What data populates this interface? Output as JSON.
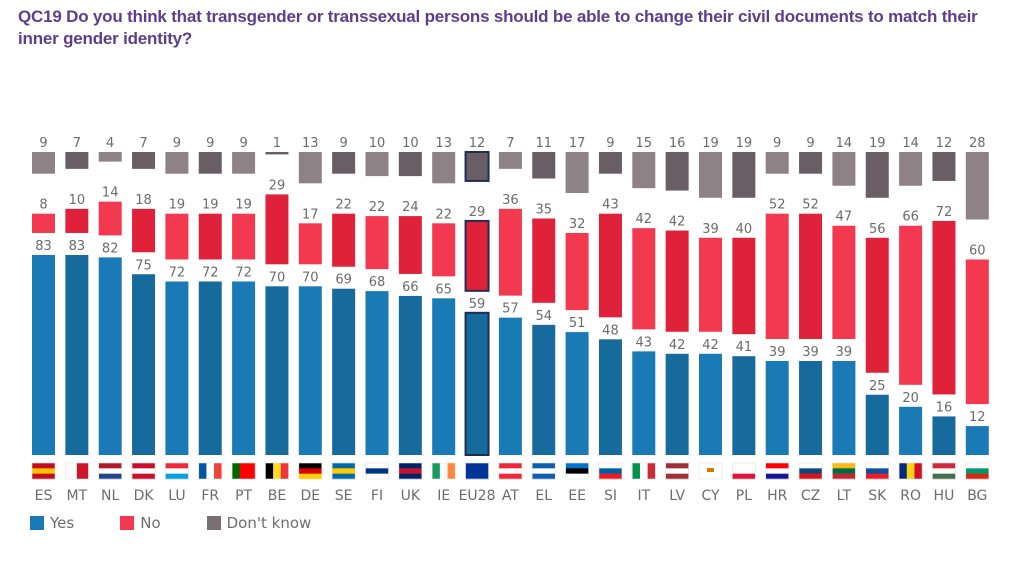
{
  "title": "QC19 Do you think that transgender or transsexual persons should be able to change their civil documents to match their inner gender identity?",
  "chart_data": {
    "type": "bar",
    "subtype": "stacked-separated",
    "title": "QC19 Do you think that transgender or transsexual persons should be able to change their civil documents to match their inner gender identity?",
    "xlabel": "",
    "ylabel": "",
    "ylim": [
      0,
      100
    ],
    "grid": false,
    "legend_position": "bottom-left",
    "highlight_category": "EU28",
    "categories": [
      "ES",
      "MT",
      "NL",
      "DK",
      "LU",
      "FR",
      "PT",
      "BE",
      "DE",
      "SE",
      "FI",
      "UK",
      "IE",
      "EU28",
      "AT",
      "EL",
      "EE",
      "SI",
      "IT",
      "LV",
      "CY",
      "PL",
      "HR",
      "CZ",
      "LT",
      "SK",
      "RO",
      "HU",
      "BG"
    ],
    "series": [
      {
        "name": "Yes",
        "color": "#1a7ab5",
        "color_alt": "#176a9c",
        "values": [
          83,
          83,
          82,
          75,
          72,
          72,
          72,
          70,
          70,
          69,
          68,
          66,
          65,
          59,
          57,
          54,
          51,
          48,
          43,
          42,
          42,
          41,
          39,
          39,
          39,
          25,
          20,
          16,
          12
        ]
      },
      {
        "name": "No",
        "color": "#f2394f",
        "color_alt": "#e0213a",
        "values": [
          8,
          10,
          14,
          18,
          19,
          19,
          19,
          29,
          17,
          22,
          22,
          24,
          22,
          29,
          36,
          35,
          32,
          43,
          42,
          42,
          39,
          40,
          52,
          52,
          47,
          56,
          66,
          72,
          60
        ]
      },
      {
        "name": "Don't know",
        "color": "#8f8286",
        "color_alt": "#685e63",
        "values": [
          9,
          7,
          4,
          7,
          9,
          9,
          9,
          1,
          13,
          9,
          10,
          10,
          13,
          12,
          7,
          11,
          17,
          9,
          15,
          16,
          19,
          19,
          9,
          9,
          14,
          19,
          14,
          12,
          28
        ]
      }
    ]
  },
  "legend": [
    {
      "label": "Yes",
      "color": "#1a7ab5"
    },
    {
      "label": "No",
      "color": "#f2394f"
    },
    {
      "label": "Don't know",
      "color": "#7a6f73"
    }
  ],
  "flags": {
    "ES": "flag-spain",
    "MT": "flag-malta",
    "NL": "flag-netherlands",
    "DK": "flag-denmark",
    "LU": "flag-luxembourg",
    "FR": "flag-france",
    "PT": "flag-portugal",
    "BE": "flag-belgium",
    "DE": "flag-germany",
    "SE": "flag-sweden",
    "FI": "flag-finland",
    "UK": "flag-united-kingdom",
    "IE": "flag-ireland",
    "EU28": "flag-european-union",
    "AT": "flag-austria",
    "EL": "flag-greece",
    "EE": "flag-estonia",
    "SI": "flag-slovenia",
    "IT": "flag-italy",
    "LV": "flag-latvia",
    "CY": "flag-cyprus",
    "PL": "flag-poland",
    "HR": "flag-croatia",
    "CZ": "flag-czechia",
    "LT": "flag-lithuania",
    "SK": "flag-slovakia",
    "RO": "flag-romania",
    "HU": "flag-hungary",
    "BG": "flag-bulgaria"
  }
}
